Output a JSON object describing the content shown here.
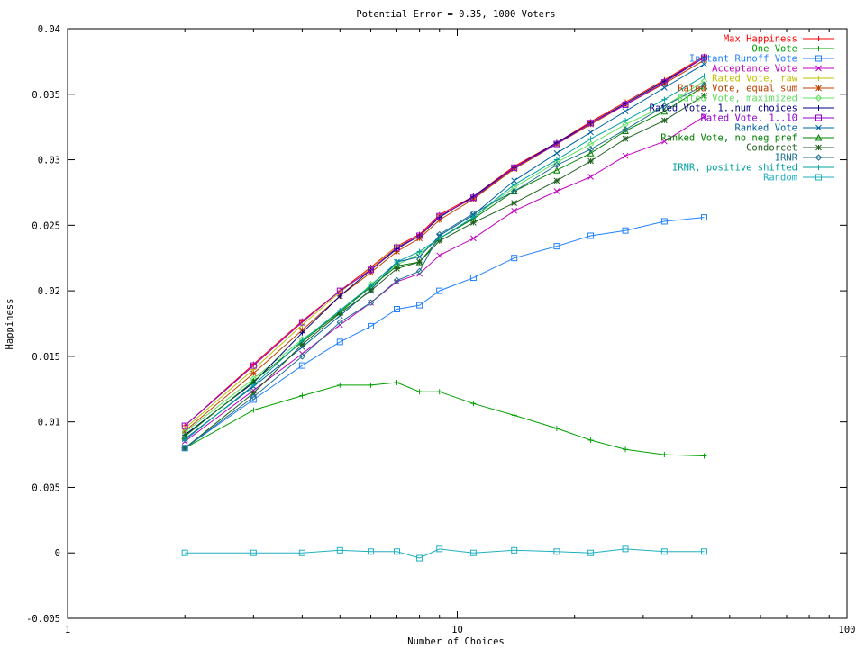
{
  "chart_data": {
    "type": "line",
    "title": "Potential Error = 0.35, 1000 Voters",
    "xlabel": "Number of Choices",
    "ylabel": "Happiness",
    "x_scale": "log",
    "xlim": [
      1,
      100
    ],
    "ylim": [
      -0.005,
      0.04
    ],
    "x_ticks": [
      1,
      10,
      100
    ],
    "x_tick_labels": [
      "1",
      "10",
      "100"
    ],
    "y_ticks": [
      -0.005,
      0,
      0.005,
      0.01,
      0.015,
      0.02,
      0.025,
      0.03,
      0.035,
      0.04
    ],
    "y_tick_labels": [
      "-0.005",
      "0",
      "0.005",
      "0.01",
      "0.015",
      "0.02",
      "0.025",
      "0.03",
      "0.035",
      "0.04"
    ],
    "grid": false,
    "legend_position": "top-right",
    "x": [
      2,
      3,
      4,
      5,
      6,
      7,
      8,
      9,
      11,
      14,
      18,
      22,
      27,
      34,
      43
    ],
    "series": [
      {
        "name": "Max Happiness",
        "color": "#ff0000",
        "marker": "plus",
        "values": [
          0.0097,
          0.0144,
          0.0177,
          0.02,
          0.0218,
          0.0234,
          0.0243,
          0.0258,
          0.0272,
          0.0295,
          0.0313,
          0.0329,
          0.0344,
          0.0361,
          0.0379
        ]
      },
      {
        "name": "One Vote",
        "color": "#00a000",
        "marker": "plus",
        "values": [
          0.008,
          0.0109,
          0.012,
          0.0128,
          0.0128,
          0.013,
          0.0123,
          0.0123,
          0.0114,
          0.0105,
          0.0095,
          0.0086,
          0.0079,
          0.0075,
          0.0074
        ]
      },
      {
        "name": "Instant Runoff Vote",
        "color": "#2080ff",
        "marker": "square",
        "values": [
          0.008,
          0.0117,
          0.0143,
          0.0161,
          0.0173,
          0.0186,
          0.0189,
          0.02,
          0.021,
          0.0225,
          0.0234,
          0.0242,
          0.0246,
          0.0253,
          0.0256
        ]
      },
      {
        "name": "Acceptance Vote",
        "color": "#c000c0",
        "marker": "x",
        "values": [
          0.0085,
          0.0124,
          0.0152,
          0.0174,
          0.0191,
          0.0207,
          0.0213,
          0.0227,
          0.024,
          0.0261,
          0.0276,
          0.0287,
          0.0303,
          0.0314,
          0.0333
        ]
      },
      {
        "name": "Rated Vote, raw",
        "color": "#c0c000",
        "marker": "plus",
        "values": [
          0.0095,
          0.014,
          0.0174,
          0.0199,
          0.0217,
          0.0234,
          0.0241,
          0.0257,
          0.0271,
          0.0293,
          0.0312,
          0.0328,
          0.0343,
          0.036,
          0.0378
        ]
      },
      {
        "name": "Rated Vote, equal sum",
        "color": "#c04000",
        "marker": "star",
        "values": [
          0.0093,
          0.0137,
          0.017,
          0.0196,
          0.0214,
          0.023,
          0.024,
          0.0254,
          0.027,
          0.0293,
          0.0312,
          0.0327,
          0.0342,
          0.0358,
          0.0376
        ]
      },
      {
        "name": "Rated Vote, maximized",
        "color": "#60e060",
        "marker": "diamond",
        "values": [
          0.0092,
          0.0133,
          0.0163,
          0.0183,
          0.0205,
          0.022,
          0.0228,
          0.024,
          0.0256,
          0.0279,
          0.0298,
          0.0312,
          0.0327,
          0.0341,
          0.036
        ]
      },
      {
        "name": "Rated Vote, 1..num choices",
        "color": "#000080",
        "marker": "plus",
        "values": [
          0.009,
          0.013,
          0.0168,
          0.0196,
          0.0216,
          0.0232,
          0.0242,
          0.0256,
          0.0272,
          0.0294,
          0.0313,
          0.0328,
          0.0343,
          0.036,
          0.0378
        ]
      },
      {
        "name": "Rated Vote, 1..10",
        "color": "#9000d0",
        "marker": "square",
        "values": [
          0.0097,
          0.0143,
          0.0176,
          0.02,
          0.0216,
          0.0233,
          0.0242,
          0.0257,
          0.0271,
          0.0294,
          0.0312,
          0.0328,
          0.0342,
          0.0359,
          0.0378
        ]
      },
      {
        "name": "Ranked Vote",
        "color": "#0060a0",
        "marker": "x",
        "values": [
          0.0087,
          0.0127,
          0.0157,
          0.0181,
          0.0201,
          0.0222,
          0.0226,
          0.0242,
          0.0258,
          0.0284,
          0.0305,
          0.0321,
          0.0337,
          0.0355,
          0.0373
        ]
      },
      {
        "name": "Ranked Vote, no neg pref",
        "color": "#008000",
        "marker": "triangle",
        "values": [
          0.0089,
          0.0131,
          0.0161,
          0.0184,
          0.0203,
          0.0219,
          0.0222,
          0.024,
          0.0255,
          0.0276,
          0.0292,
          0.0305,
          0.0322,
          0.0337,
          0.0356
        ]
      },
      {
        "name": "Condorcet",
        "color": "#206020",
        "marker": "star",
        "values": [
          0.008,
          0.0122,
          0.0159,
          0.0183,
          0.02,
          0.0217,
          0.0222,
          0.0238,
          0.0252,
          0.0267,
          0.0284,
          0.0299,
          0.0316,
          0.033,
          0.0349
        ]
      },
      {
        "name": "IRNR",
        "color": "#207090",
        "marker": "diamond",
        "values": [
          0.008,
          0.0119,
          0.015,
          0.0176,
          0.0191,
          0.0208,
          0.0215,
          0.0243,
          0.0259,
          0.0276,
          0.0296,
          0.0308,
          0.0323,
          0.0341,
          0.0357
        ]
      },
      {
        "name": "IRNR, positive shifted",
        "color": "#00a0a0",
        "marker": "plus",
        "values": [
          0.0086,
          0.0128,
          0.0162,
          0.0185,
          0.0204,
          0.0222,
          0.023,
          0.024,
          0.0256,
          0.0281,
          0.03,
          0.0316,
          0.033,
          0.0346,
          0.0364
        ]
      },
      {
        "name": "Random",
        "color": "#20b0c0",
        "marker": "square",
        "values": [
          0.0,
          0.0,
          0.0,
          0.0002,
          0.0001,
          0.0001,
          -0.0004,
          0.0003,
          0.0,
          0.0002,
          0.0001,
          0.0,
          0.0003,
          0.0001,
          0.0001
        ]
      }
    ]
  }
}
